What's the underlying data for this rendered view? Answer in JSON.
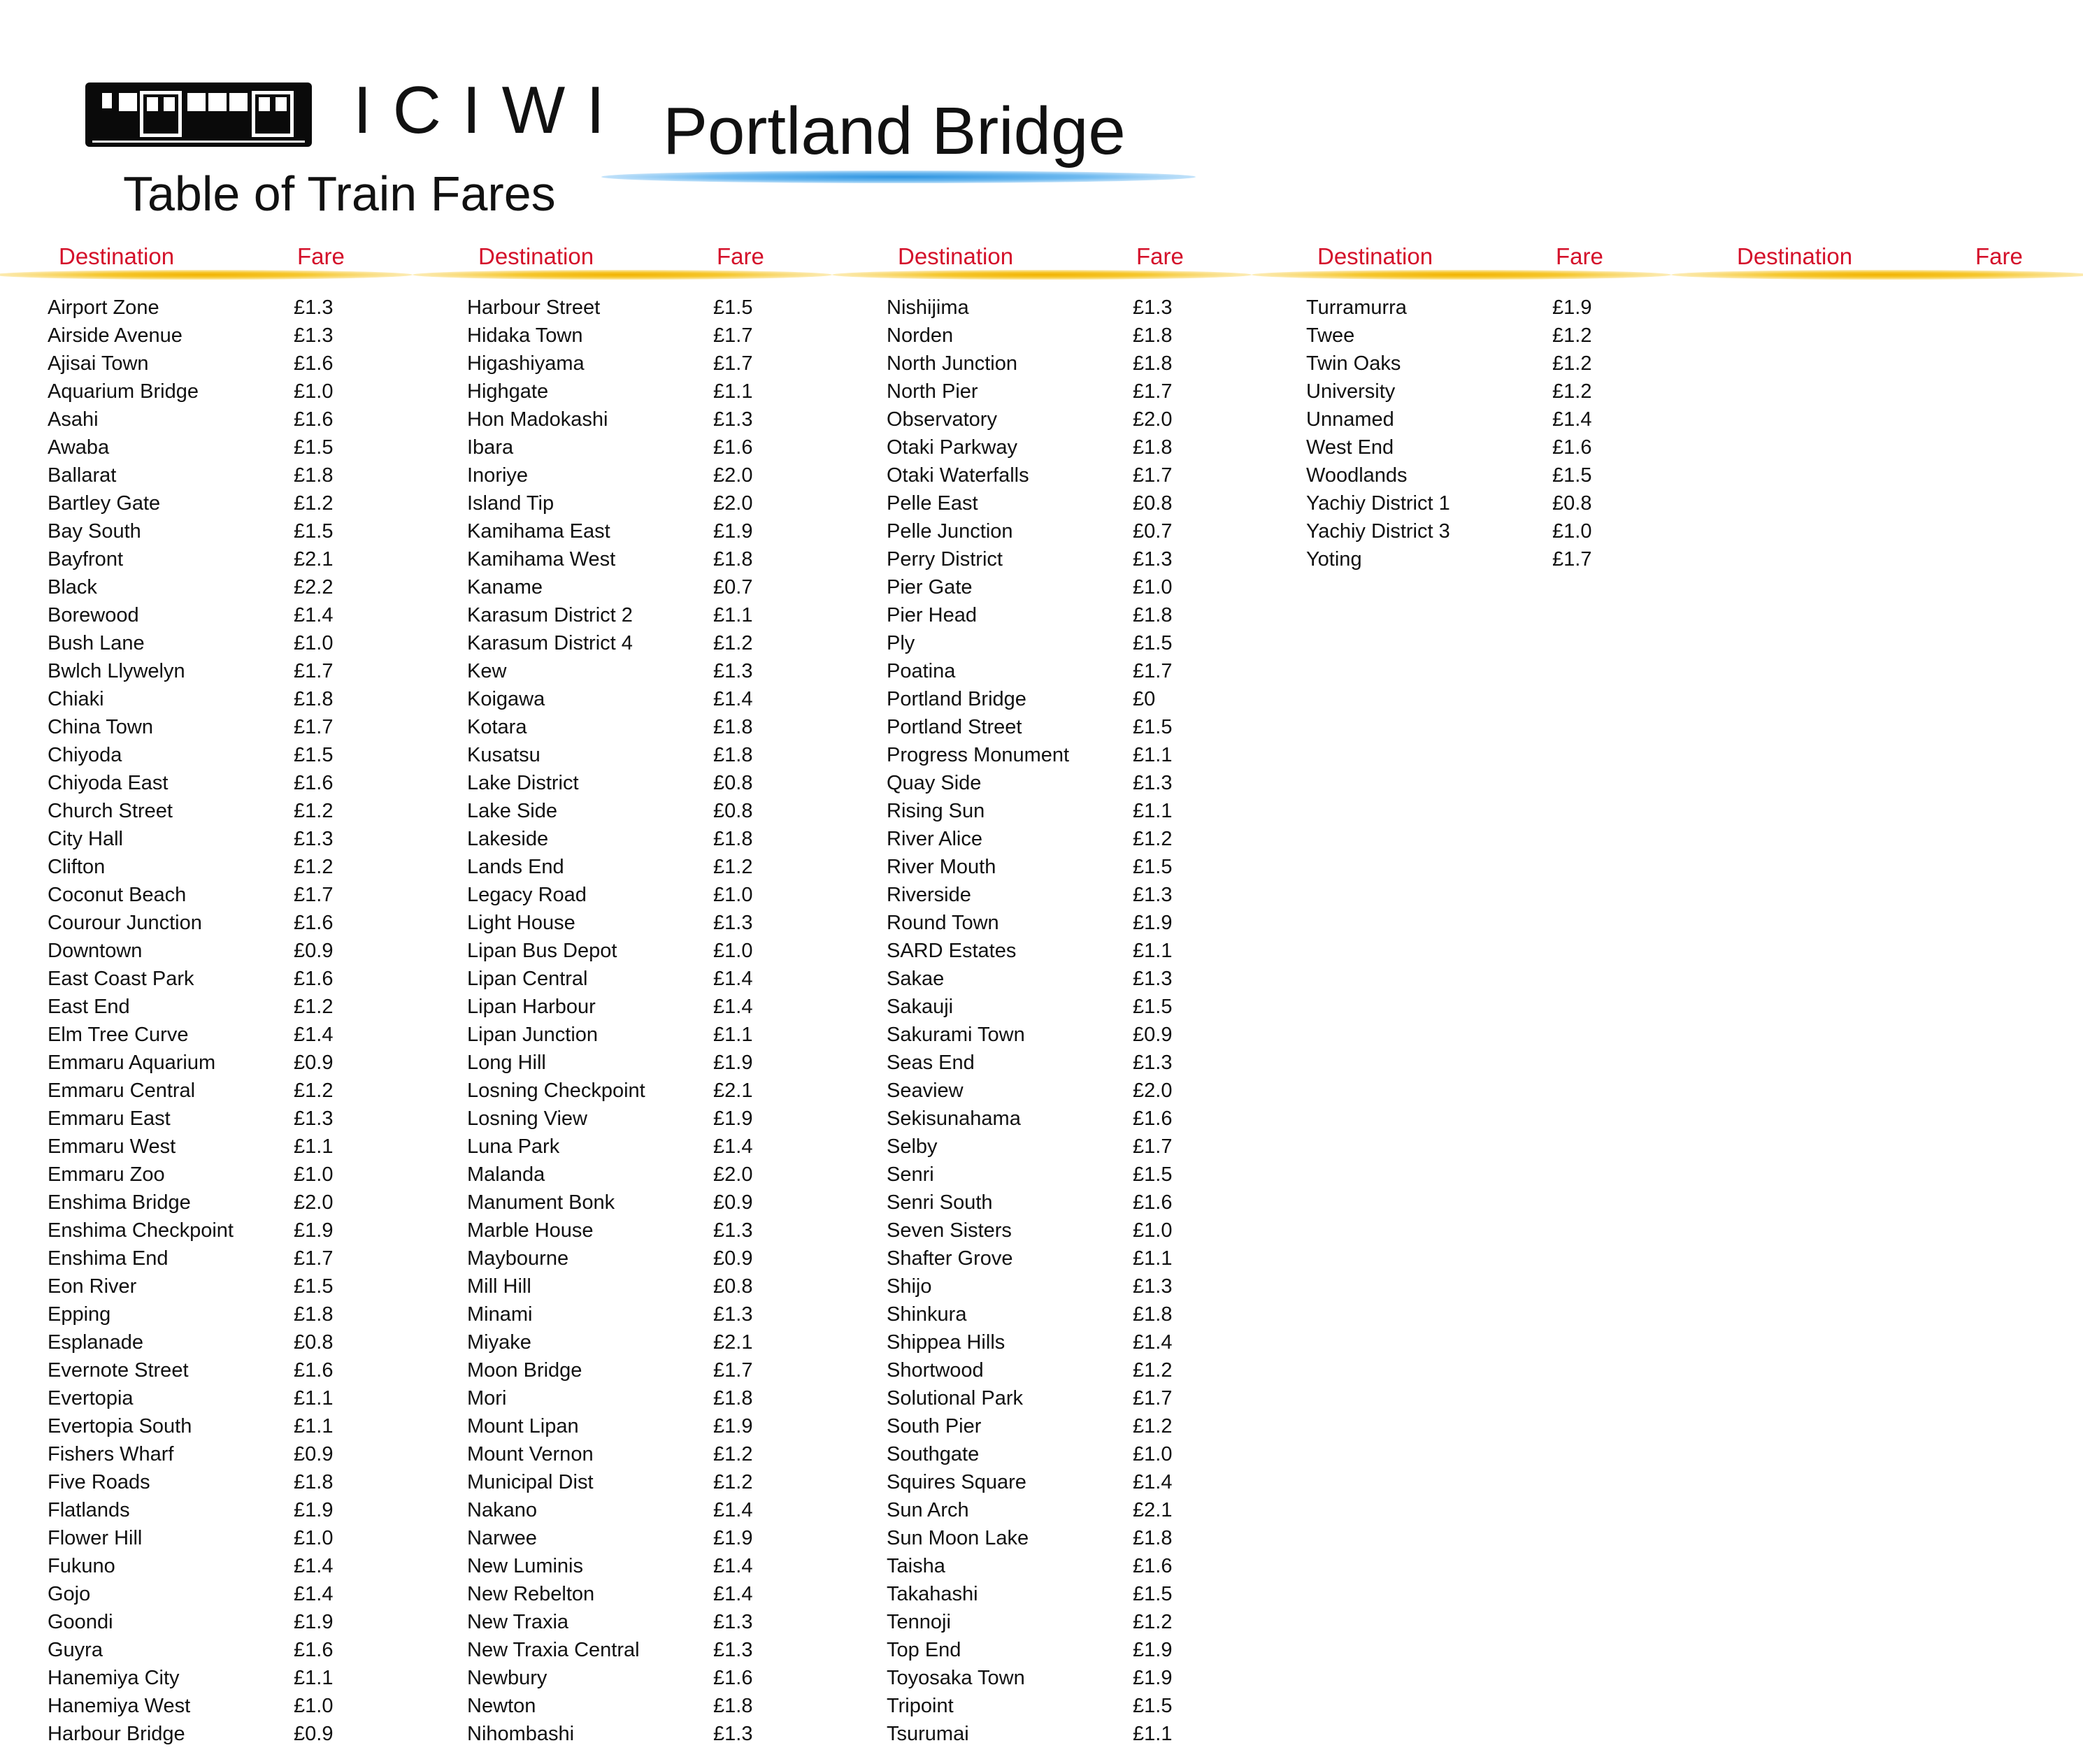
{
  "header": {
    "brand": "ICIWI",
    "subtitle": "Table of Train Fares",
    "station": "Portland Bridge",
    "logo_icon": "train-icon"
  },
  "colors": {
    "header_text": "#d4102a",
    "header_rule": "#f2b200",
    "title_rule": "#2f95e0"
  },
  "columns": [
    {
      "header_destination": "Destination",
      "header_fare": "Fare",
      "rows": [
        {
          "destination": "Airport Zone",
          "fare": "£1.3"
        },
        {
          "destination": "Airside Avenue",
          "fare": "£1.3"
        },
        {
          "destination": "Ajisai Town",
          "fare": "£1.6"
        },
        {
          "destination": "Aquarium Bridge",
          "fare": "£1.0"
        },
        {
          "destination": "Asahi",
          "fare": "£1.6"
        },
        {
          "destination": "Awaba",
          "fare": "£1.5"
        },
        {
          "destination": "Ballarat",
          "fare": "£1.8"
        },
        {
          "destination": "Bartley Gate",
          "fare": "£1.2"
        },
        {
          "destination": "Bay South",
          "fare": "£1.5"
        },
        {
          "destination": "Bayfront",
          "fare": "£2.1"
        },
        {
          "destination": "Black",
          "fare": "£2.2"
        },
        {
          "destination": "Borewood",
          "fare": "£1.4"
        },
        {
          "destination": "Bush Lane",
          "fare": "£1.0"
        },
        {
          "destination": "Bwlch Llywelyn",
          "fare": "£1.7"
        },
        {
          "destination": "Chiaki",
          "fare": "£1.8"
        },
        {
          "destination": "China Town",
          "fare": "£1.7"
        },
        {
          "destination": "Chiyoda",
          "fare": "£1.5"
        },
        {
          "destination": "Chiyoda East",
          "fare": "£1.6"
        },
        {
          "destination": "Church Street",
          "fare": "£1.2"
        },
        {
          "destination": "City Hall",
          "fare": "£1.3"
        },
        {
          "destination": "Clifton",
          "fare": "£1.2"
        },
        {
          "destination": "Coconut Beach",
          "fare": "£1.7"
        },
        {
          "destination": "Courour Junction",
          "fare": "£1.6"
        },
        {
          "destination": "Downtown",
          "fare": "£0.9"
        },
        {
          "destination": "East Coast Park",
          "fare": "£1.6"
        },
        {
          "destination": "East End",
          "fare": "£1.2"
        },
        {
          "destination": "Elm Tree Curve",
          "fare": "£1.4"
        },
        {
          "destination": "Emmaru Aquarium",
          "fare": "£0.9"
        },
        {
          "destination": "Emmaru Central",
          "fare": "£1.2"
        },
        {
          "destination": "Emmaru East",
          "fare": "£1.3"
        },
        {
          "destination": "Emmaru West",
          "fare": "£1.1"
        },
        {
          "destination": "Emmaru Zoo",
          "fare": "£1.0"
        },
        {
          "destination": "Enshima Bridge",
          "fare": "£2.0"
        },
        {
          "destination": "Enshima Checkpoint",
          "fare": "£1.9"
        },
        {
          "destination": "Enshima End",
          "fare": "£1.7"
        },
        {
          "destination": "Eon River",
          "fare": "£1.5"
        },
        {
          "destination": "Epping",
          "fare": "£1.8"
        },
        {
          "destination": "Esplanade",
          "fare": "£0.8"
        },
        {
          "destination": "Evernote Street",
          "fare": "£1.6"
        },
        {
          "destination": "Evertopia",
          "fare": "£1.1"
        },
        {
          "destination": "Evertopia South",
          "fare": "£1.1"
        },
        {
          "destination": "Fishers Wharf",
          "fare": "£0.9"
        },
        {
          "destination": "Five Roads",
          "fare": "£1.8"
        },
        {
          "destination": "Flatlands",
          "fare": "£1.9"
        },
        {
          "destination": "Flower Hill",
          "fare": "£1.0"
        },
        {
          "destination": "Fukuno",
          "fare": "£1.4"
        },
        {
          "destination": "Gojo",
          "fare": "£1.4"
        },
        {
          "destination": "Goondi",
          "fare": "£1.9"
        },
        {
          "destination": "Guyra",
          "fare": "£1.6"
        },
        {
          "destination": "Hanemiya City",
          "fare": "£1.1"
        },
        {
          "destination": "Hanemiya West",
          "fare": "£1.0"
        },
        {
          "destination": "Harbour Bridge",
          "fare": "£0.9"
        }
      ]
    },
    {
      "header_destination": "Destination",
      "header_fare": "Fare",
      "rows": [
        {
          "destination": "Harbour Street",
          "fare": "£1.5"
        },
        {
          "destination": "Hidaka Town",
          "fare": "£1.7"
        },
        {
          "destination": "Higashiyama",
          "fare": "£1.7"
        },
        {
          "destination": "Highgate",
          "fare": "£1.1"
        },
        {
          "destination": "Hon Madokashi",
          "fare": "£1.3"
        },
        {
          "destination": "Ibara",
          "fare": "£1.6"
        },
        {
          "destination": "Inoriye",
          "fare": "£2.0"
        },
        {
          "destination": "Island Tip",
          "fare": "£2.0"
        },
        {
          "destination": "Kamihama East",
          "fare": "£1.9"
        },
        {
          "destination": "Kamihama West",
          "fare": "£1.8"
        },
        {
          "destination": "Kaname",
          "fare": "£0.7"
        },
        {
          "destination": "Karasum District 2",
          "fare": "£1.1"
        },
        {
          "destination": "Karasum District 4",
          "fare": "£1.2"
        },
        {
          "destination": "Kew",
          "fare": "£1.3"
        },
        {
          "destination": "Koigawa",
          "fare": "£1.4"
        },
        {
          "destination": "Kotara",
          "fare": "£1.8"
        },
        {
          "destination": "Kusatsu",
          "fare": "£1.8"
        },
        {
          "destination": "Lake District",
          "fare": "£0.8"
        },
        {
          "destination": "Lake Side",
          "fare": "£0.8"
        },
        {
          "destination": "Lakeside",
          "fare": "£1.8"
        },
        {
          "destination": "Lands End",
          "fare": "£1.2"
        },
        {
          "destination": "Legacy Road",
          "fare": "£1.0"
        },
        {
          "destination": "Light House",
          "fare": "£1.3"
        },
        {
          "destination": "Lipan Bus Depot",
          "fare": "£1.0"
        },
        {
          "destination": "Lipan Central",
          "fare": "£1.4"
        },
        {
          "destination": "Lipan Harbour",
          "fare": "£1.4"
        },
        {
          "destination": "Lipan Junction",
          "fare": "£1.1"
        },
        {
          "destination": "Long Hill",
          "fare": "£1.9"
        },
        {
          "destination": "Losning Checkpoint",
          "fare": "£2.1"
        },
        {
          "destination": "Losning View",
          "fare": "£1.9"
        },
        {
          "destination": "Luna Park",
          "fare": "£1.4"
        },
        {
          "destination": "Malanda",
          "fare": "£2.0"
        },
        {
          "destination": "Manument Bonk",
          "fare": "£0.9"
        },
        {
          "destination": "Marble House",
          "fare": "£1.3"
        },
        {
          "destination": "Maybourne",
          "fare": "£0.9"
        },
        {
          "destination": "Mill Hill",
          "fare": "£0.8"
        },
        {
          "destination": "Minami",
          "fare": "£1.3"
        },
        {
          "destination": "Miyake",
          "fare": "£2.1"
        },
        {
          "destination": "Moon Bridge",
          "fare": "£1.7"
        },
        {
          "destination": "Mori",
          "fare": "£1.8"
        },
        {
          "destination": "Mount Lipan",
          "fare": "£1.9"
        },
        {
          "destination": "Mount Vernon",
          "fare": "£1.2"
        },
        {
          "destination": "Municipal Dist",
          "fare": "£1.2"
        },
        {
          "destination": "Nakano",
          "fare": "£1.4"
        },
        {
          "destination": "Narwee",
          "fare": "£1.9"
        },
        {
          "destination": "New Luminis",
          "fare": "£1.4"
        },
        {
          "destination": "New Rebelton",
          "fare": "£1.4"
        },
        {
          "destination": "New Traxia",
          "fare": "£1.3"
        },
        {
          "destination": "New Traxia Central",
          "fare": "£1.3"
        },
        {
          "destination": "Newbury",
          "fare": "£1.6"
        },
        {
          "destination": "Newton",
          "fare": "£1.8"
        },
        {
          "destination": "Nihombashi",
          "fare": "£1.3"
        }
      ]
    },
    {
      "header_destination": "Destination",
      "header_fare": "Fare",
      "rows": [
        {
          "destination": "Nishijima",
          "fare": "£1.3"
        },
        {
          "destination": "Norden",
          "fare": "£1.8"
        },
        {
          "destination": "North Junction",
          "fare": "£1.8"
        },
        {
          "destination": "North Pier",
          "fare": "£1.7"
        },
        {
          "destination": "Observatory",
          "fare": "£2.0"
        },
        {
          "destination": "Otaki Parkway",
          "fare": "£1.8"
        },
        {
          "destination": "Otaki Waterfalls",
          "fare": "£1.7"
        },
        {
          "destination": "Pelle East",
          "fare": "£0.8"
        },
        {
          "destination": "Pelle Junction",
          "fare": "£0.7"
        },
        {
          "destination": "Perry District",
          "fare": "£1.3"
        },
        {
          "destination": "Pier Gate",
          "fare": "£1.0"
        },
        {
          "destination": "Pier Head",
          "fare": "£1.8"
        },
        {
          "destination": "Ply",
          "fare": "£1.5"
        },
        {
          "destination": "Poatina",
          "fare": "£1.7"
        },
        {
          "destination": "Portland Bridge",
          "fare": "£0"
        },
        {
          "destination": "Portland Street",
          "fare": "£1.5"
        },
        {
          "destination": "Progress Monument",
          "fare": "£1.1"
        },
        {
          "destination": "Quay Side",
          "fare": "£1.3"
        },
        {
          "destination": "Rising Sun",
          "fare": "£1.1"
        },
        {
          "destination": "River Alice",
          "fare": "£1.2"
        },
        {
          "destination": "River Mouth",
          "fare": "£1.5"
        },
        {
          "destination": "Riverside",
          "fare": "£1.3"
        },
        {
          "destination": "Round Town",
          "fare": "£1.9"
        },
        {
          "destination": "SARD Estates",
          "fare": "£1.1"
        },
        {
          "destination": "Sakae",
          "fare": "£1.3"
        },
        {
          "destination": "Sakauji",
          "fare": "£1.5"
        },
        {
          "destination": "Sakurami Town",
          "fare": "£0.9"
        },
        {
          "destination": "Seas End",
          "fare": "£1.3"
        },
        {
          "destination": "Seaview",
          "fare": "£2.0"
        },
        {
          "destination": "Sekisunahama",
          "fare": "£1.6"
        },
        {
          "destination": "Selby",
          "fare": "£1.7"
        },
        {
          "destination": "Senri",
          "fare": "£1.5"
        },
        {
          "destination": "Senri South",
          "fare": "£1.6"
        },
        {
          "destination": "Seven Sisters",
          "fare": "£1.0"
        },
        {
          "destination": "Shafter Grove",
          "fare": "£1.1"
        },
        {
          "destination": "Shijo",
          "fare": "£1.3"
        },
        {
          "destination": "Shinkura",
          "fare": "£1.8"
        },
        {
          "destination": "Shippea Hills",
          "fare": "£1.4"
        },
        {
          "destination": "Shortwood",
          "fare": "£1.2"
        },
        {
          "destination": "Solutional Park",
          "fare": "£1.7"
        },
        {
          "destination": "South Pier",
          "fare": "£1.2"
        },
        {
          "destination": "Southgate",
          "fare": "£1.0"
        },
        {
          "destination": "Squires Square",
          "fare": "£1.4"
        },
        {
          "destination": "Sun Arch",
          "fare": "£2.1"
        },
        {
          "destination": "Sun Moon Lake",
          "fare": "£1.8"
        },
        {
          "destination": "Taisha",
          "fare": "£1.6"
        },
        {
          "destination": "Takahashi",
          "fare": "£1.5"
        },
        {
          "destination": "Tennoji",
          "fare": "£1.2"
        },
        {
          "destination": "Top End",
          "fare": "£1.9"
        },
        {
          "destination": "Toyosaka Town",
          "fare": "£1.9"
        },
        {
          "destination": "Tripoint",
          "fare": "£1.5"
        },
        {
          "destination": "Tsurumai",
          "fare": "£1.1"
        }
      ]
    },
    {
      "header_destination": "Destination",
      "header_fare": "Fare",
      "rows": [
        {
          "destination": "Turramurra",
          "fare": "£1.9"
        },
        {
          "destination": "Twee",
          "fare": "£1.2"
        },
        {
          "destination": "Twin Oaks",
          "fare": "£1.2"
        },
        {
          "destination": "University",
          "fare": "£1.2"
        },
        {
          "destination": "Unnamed",
          "fare": "£1.4"
        },
        {
          "destination": "West End",
          "fare": "£1.6"
        },
        {
          "destination": "Woodlands",
          "fare": "£1.5"
        },
        {
          "destination": "Yachiy District 1",
          "fare": "£0.8"
        },
        {
          "destination": "Yachiy District 3",
          "fare": "£1.0"
        },
        {
          "destination": "Yoting",
          "fare": "£1.7"
        }
      ]
    },
    {
      "header_destination": "Destination",
      "header_fare": "Fare",
      "rows": []
    }
  ]
}
